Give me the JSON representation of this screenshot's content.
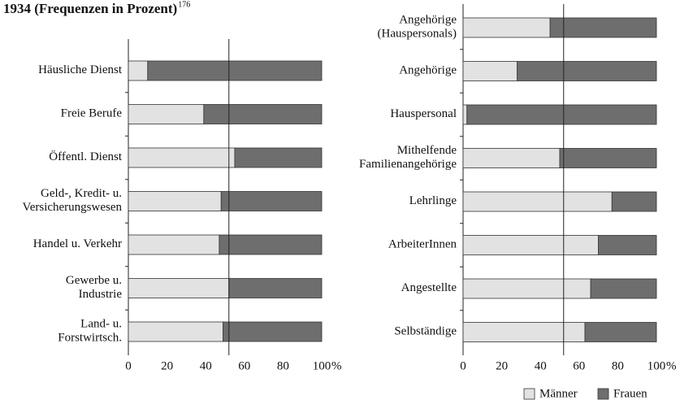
{
  "chart_data": [
    {
      "type": "bar",
      "stacked": true,
      "orientation": "horizontal",
      "title": "1934 (Frequenzen in Prozent)",
      "title_note": "176",
      "categories": [
        "Häusliche Dienst",
        "Freie Berufe",
        "Öffentl. Dienst",
        "Geld-, Kredit- u.\nVersicherungswesen",
        "Handel u. Verkehr",
        "Gewerbe u.\nIndustrie",
        "Land- u.\nForstwirtsch."
      ],
      "series": [
        {
          "name": "Männer",
          "color": "#e2e2e2",
          "values": [
            10,
            39,
            55,
            48,
            47,
            52,
            49
          ]
        },
        {
          "name": "Frauen",
          "color": "#6e6e6e",
          "values": [
            90,
            61,
            45,
            52,
            53,
            48,
            51
          ]
        }
      ],
      "reference": 52,
      "xlim": [
        0,
        100
      ],
      "xticks": [
        0,
        20,
        40,
        60,
        80,
        100
      ],
      "xlabel": "%"
    },
    {
      "type": "bar",
      "stacked": true,
      "orientation": "horizontal",
      "categories": [
        "Angehörige\n(Hauspersonals)",
        "Angehörige",
        "Hauspersonal",
        "Mithelfende\nFamilienangehörige",
        "Lehrlinge",
        "ArbeiterInnen",
        "Angestellte",
        "Selbständige"
      ],
      "series": [
        {
          "color": "#e2e2e2",
          "values": [
            45,
            28,
            2,
            50,
            77,
            70,
            66,
            63
          ]
        },
        {
          "color": "#6e6e6e",
          "values": [
            55,
            72,
            98,
            50,
            23,
            30,
            34,
            37
          ]
        }
      ],
      "reference": 52,
      "xlim": [
        0,
        100
      ],
      "xticks": [
        0,
        20,
        40,
        60,
        80,
        100
      ],
      "xlabel": "%"
    }
  ]
}
